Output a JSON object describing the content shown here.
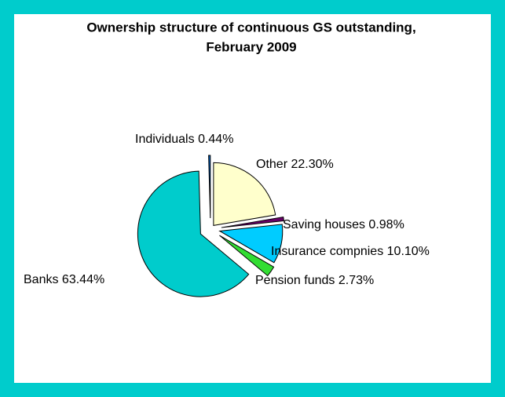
{
  "chart_data": {
    "type": "pie",
    "title": [
      "Ownership structure of continuous GS outstanding,",
      "February 2009"
    ],
    "categories": [
      "Other",
      "Saving houses",
      "Insurance compnies",
      "Pension funds",
      "Banks",
      "Individuals"
    ],
    "values": [
      22.3,
      0.98,
      10.1,
      2.73,
      63.44,
      0.44
    ],
    "value_labels": [
      "22.30%",
      "0.98%",
      "10.10%",
      "2.73%",
      "63.44%",
      "0.44%"
    ],
    "colors": [
      "#ffffcc",
      "#660066",
      "#00ccff",
      "#33dd33",
      "#00cccc",
      "#0066cc"
    ]
  }
}
